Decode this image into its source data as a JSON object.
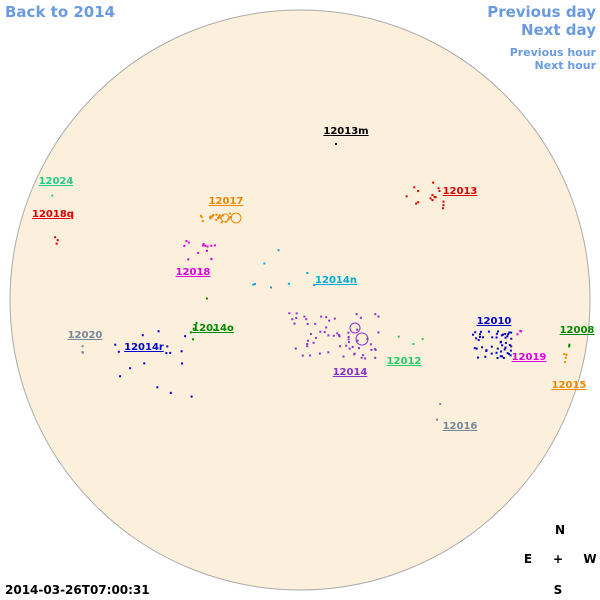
{
  "nav": {
    "back": "Back to 2014",
    "previous_day": "Previous day",
    "next_day": "Next day",
    "previous_hour": "Previous hour",
    "next_hour": "Next hour"
  },
  "regions": [
    {
      "label": "12013m",
      "color": "#000000"
    },
    {
      "label": "12013",
      "color": "#dd0000"
    },
    {
      "label": "12024",
      "color": "#22cc88"
    },
    {
      "label": "12018q",
      "color": "#dd0000"
    },
    {
      "label": "12017",
      "color": "#ee8800"
    },
    {
      "label": "12018",
      "color": "#dd00dd"
    },
    {
      "label": "12014n",
      "color": "#00aadd"
    },
    {
      "label": "12014o",
      "color": "#008800"
    },
    {
      "label": "12020",
      "color": "#778899"
    },
    {
      "label": "12014r",
      "color": "#0000cc"
    },
    {
      "label": "12014",
      "color": "#8833cc"
    },
    {
      "label": "12012",
      "color": "#22cc66"
    },
    {
      "label": "12010",
      "color": "#0000cc"
    },
    {
      "label": "12008",
      "color": "#008800"
    },
    {
      "label": "12019",
      "color": "#dd00dd"
    },
    {
      "label": "12015",
      "color": "#ee8800"
    },
    {
      "label": "12016",
      "color": "#778899"
    }
  ],
  "compass": {
    "north": "N",
    "east": "E",
    "center": "+",
    "west": "W",
    "south": "S"
  },
  "timestamp": "2014-03-26T07:00:31"
}
